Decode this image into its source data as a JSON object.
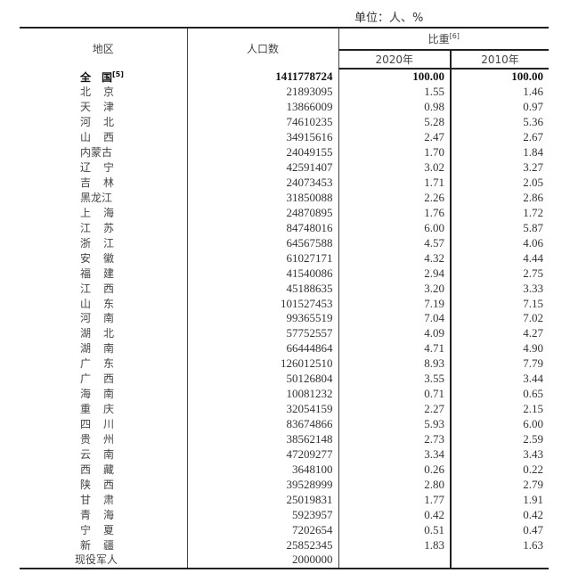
{
  "unit_label": "单位：人、%",
  "headers": {
    "region": "地区",
    "population": "人口数",
    "share": "比重",
    "share_note": "[6]",
    "year_2020": "2020年",
    "year_2010": "2010年"
  },
  "total": {
    "region": "全　国",
    "note": "[5]",
    "population": "1411778724",
    "share_2020": "100.00",
    "share_2010": "100.00"
  },
  "rows": [
    {
      "region": "北京",
      "population": "21893095",
      "share_2020": "1.55",
      "share_2010": "1.46"
    },
    {
      "region": "天津",
      "population": "13866009",
      "share_2020": "0.98",
      "share_2010": "0.97"
    },
    {
      "region": "河北",
      "population": "74610235",
      "share_2020": "5.28",
      "share_2010": "5.36"
    },
    {
      "region": "山西",
      "population": "34915616",
      "share_2020": "2.47",
      "share_2010": "2.67"
    },
    {
      "region": "内蒙古",
      "population": "24049155",
      "share_2020": "1.70",
      "share_2010": "1.84"
    },
    {
      "region": "辽宁",
      "population": "42591407",
      "share_2020": "3.02",
      "share_2010": "3.27"
    },
    {
      "region": "吉林",
      "population": "24073453",
      "share_2020": "1.71",
      "share_2010": "2.05"
    },
    {
      "region": "黑龙江",
      "population": "31850088",
      "share_2020": "2.26",
      "share_2010": "2.86"
    },
    {
      "region": "上海",
      "population": "24870895",
      "share_2020": "1.76",
      "share_2010": "1.72"
    },
    {
      "region": "江苏",
      "population": "84748016",
      "share_2020": "6.00",
      "share_2010": "5.87"
    },
    {
      "region": "浙江",
      "population": "64567588",
      "share_2020": "4.57",
      "share_2010": "4.06"
    },
    {
      "region": "安徽",
      "population": "61027171",
      "share_2020": "4.32",
      "share_2010": "4.44"
    },
    {
      "region": "福建",
      "population": "41540086",
      "share_2020": "2.94",
      "share_2010": "2.75"
    },
    {
      "region": "江西",
      "population": "45188635",
      "share_2020": "3.20",
      "share_2010": "3.33"
    },
    {
      "region": "山东",
      "population": "101527453",
      "share_2020": "7.19",
      "share_2010": "7.15"
    },
    {
      "region": "河南",
      "population": "99365519",
      "share_2020": "7.04",
      "share_2010": "7.02"
    },
    {
      "region": "湖北",
      "population": "57752557",
      "share_2020": "4.09",
      "share_2010": "4.27"
    },
    {
      "region": "湖南",
      "population": "66444864",
      "share_2020": "4.71",
      "share_2010": "4.90"
    },
    {
      "region": "广东",
      "population": "126012510",
      "share_2020": "8.93",
      "share_2010": "7.79"
    },
    {
      "region": "广西",
      "population": "50126804",
      "share_2020": "3.55",
      "share_2010": "3.44"
    },
    {
      "region": "海南",
      "population": "10081232",
      "share_2020": "0.71",
      "share_2010": "0.65"
    },
    {
      "region": "重庆",
      "population": "32054159",
      "share_2020": "2.27",
      "share_2010": "2.15"
    },
    {
      "region": "四川",
      "population": "83674866",
      "share_2020": "5.93",
      "share_2010": "6.00"
    },
    {
      "region": "贵州",
      "population": "38562148",
      "share_2020": "2.73",
      "share_2010": "2.59"
    },
    {
      "region": "云南",
      "population": "47209277",
      "share_2020": "3.34",
      "share_2010": "3.43"
    },
    {
      "region": "西藏",
      "population": "3648100",
      "share_2020": "0.26",
      "share_2010": "0.22"
    },
    {
      "region": "陕西",
      "population": "39528999",
      "share_2020": "2.80",
      "share_2010": "2.79"
    },
    {
      "region": "甘肃",
      "population": "25019831",
      "share_2020": "1.77",
      "share_2010": "1.91"
    },
    {
      "region": "青海",
      "population": "5923957",
      "share_2020": "0.42",
      "share_2010": "0.42"
    },
    {
      "region": "宁夏",
      "population": "7202654",
      "share_2020": "0.51",
      "share_2010": "0.47"
    },
    {
      "region": "新疆",
      "population": "25852345",
      "share_2020": "1.83",
      "share_2010": "1.63"
    },
    {
      "region": "现役军人",
      "population": "2000000",
      "share_2020": "",
      "share_2010": ""
    }
  ]
}
